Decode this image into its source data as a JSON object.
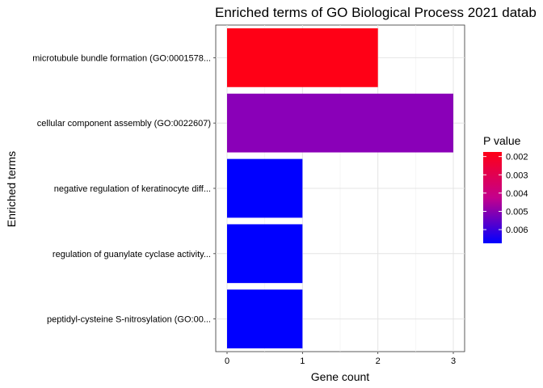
{
  "chart_data": {
    "type": "bar",
    "orientation": "horizontal",
    "title": "Enriched terms of GO Biological Process 2021 datab",
    "xlabel": "Gene count",
    "ylabel": "Enriched terms",
    "xlim": [
      -0.15,
      3.15
    ],
    "xticks": [
      0,
      1,
      2,
      3
    ],
    "grid": true,
    "categories": [
      "microtubule bundle formation (GO:0001578...",
      "cellular component assembly (GO:0022607)",
      "negative regulation of keratinocyte diff...",
      "regulation of guanylate cyclase activity...",
      "peptidyl-cysteine S-nitrosylation (GO:00..."
    ],
    "values": [
      2,
      3,
      1,
      1,
      1
    ],
    "bar_colors": [
      "#ff0016",
      "#8a00b8",
      "#0000ff",
      "#0000ff",
      "#0000ff"
    ],
    "legend": {
      "title": "P value",
      "type": "colorbar",
      "placement": "right",
      "labels": [
        "0.002",
        "0.003",
        "0.004",
        "0.005",
        "0.006"
      ],
      "values": [
        0.002,
        0.003,
        0.004,
        0.005,
        0.006
      ],
      "range": [
        0.00175,
        0.00675
      ],
      "color_low": "#ff0016",
      "color_high": "#0000ff"
    }
  }
}
